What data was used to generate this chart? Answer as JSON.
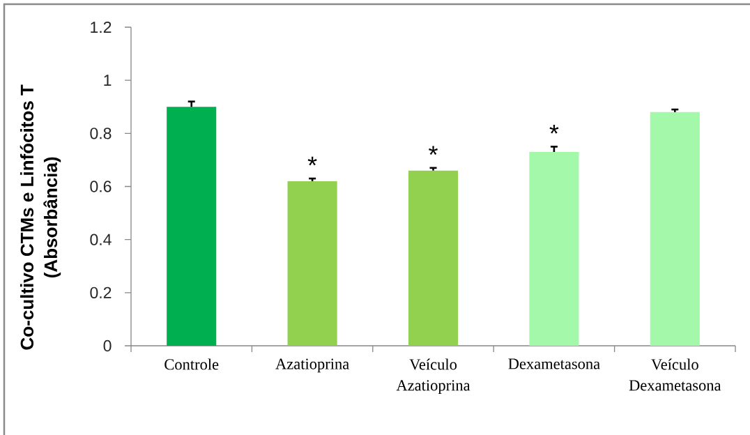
{
  "chart_data": {
    "type": "bar",
    "ylabel": "Co-cultivo CTMs e Linfócitos T (Absorbância)",
    "categories": [
      "Controle",
      "Azatioprina",
      "Veículo Azatioprina",
      "Dexametasona",
      "Veículo Dexametasona"
    ],
    "values": [
      0.9,
      0.62,
      0.66,
      0.73,
      0.88
    ],
    "colors": [
      "#00b050",
      "#92d050",
      "#92d050",
      "#a3f8a9",
      "#a3f8a9"
    ],
    "errors": [
      [
        0.9,
        0.92
      ],
      [
        0.62,
        0.63
      ],
      [
        0.66,
        0.67
      ],
      [
        0.73,
        0.75
      ],
      [
        0.88,
        0.89
      ]
    ],
    "ylim": [
      0,
      1.2
    ],
    "yticks": [
      0,
      0.2,
      0.4,
      0.6,
      0.8,
      1,
      1.2
    ],
    "annotations": [
      {
        "text": "*",
        "x": "Azatioprina",
        "y": 0.62
      },
      {
        "text": "*",
        "x": "Veículo Azatioprina",
        "y": 0.66
      },
      {
        "text": "*",
        "x": "Dexametasona",
        "y": 0.73
      }
    ]
  }
}
